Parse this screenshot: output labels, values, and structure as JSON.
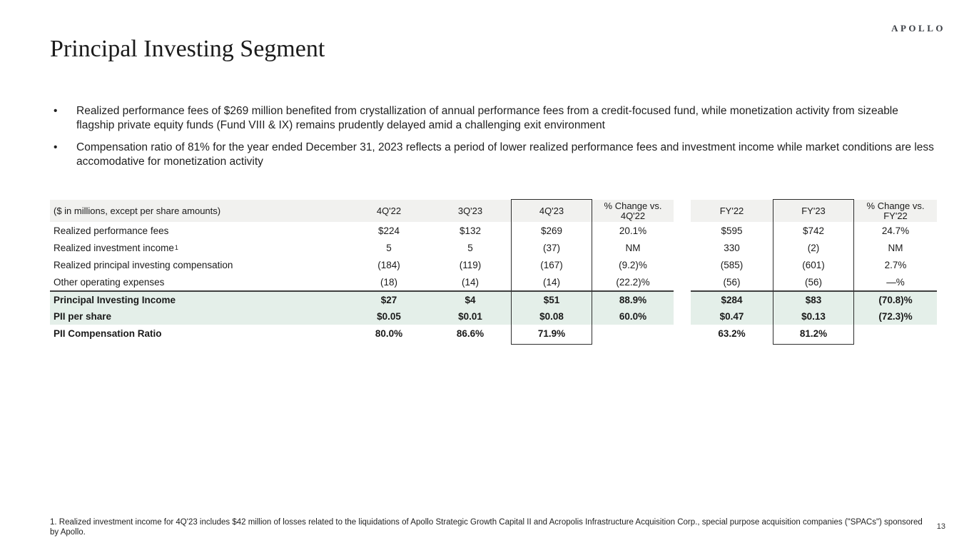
{
  "brand": {
    "logo": "APOLLO"
  },
  "page": {
    "title": "Principal Investing Segment",
    "page_number": "13"
  },
  "glyphs": {
    "bullet": "•"
  },
  "bullets": [
    "Realized performance fees of $269 million benefited from crystallization of annual performance fees from a credit-focused fund, while monetization activity from sizeable flagship private equity funds (Fund VIII & IX) remains prudently delayed amid a challenging exit environment",
    "Compensation ratio of 81% for the year ended December 31, 2023 reflects a period of lower realized performance fees and investment income while market conditions are less accomodative for monetization activity"
  ],
  "table": {
    "header": {
      "label": "($ in millions, except per share amounts)",
      "columns": [
        "4Q'22",
        "3Q'23",
        "4Q'23",
        "% Change vs.\n4Q'22",
        "FY'22",
        "FY'23",
        "% Change vs.\nFY'22"
      ]
    },
    "rows": [
      {
        "label": "Realized performance fees",
        "values": [
          "$224",
          "$132",
          "$269",
          "20.1%",
          "$595",
          "$742",
          "24.7%"
        ]
      },
      {
        "label": "Realized investment income",
        "sup": "1",
        "values": [
          "5",
          "5",
          "(37)",
          "NM",
          "330",
          "(2)",
          "NM"
        ]
      },
      {
        "label": "Realized principal investing compensation",
        "values": [
          "(184)",
          "(119)",
          "(167)",
          "(9.2)%",
          "(585)",
          "(601)",
          "2.7%"
        ]
      },
      {
        "label": "Other operating expenses",
        "values": [
          "(18)",
          "(14)",
          "(14)",
          "(22.2)%",
          "(56)",
          "(56)",
          "—%"
        ]
      },
      {
        "label": "Principal Investing Income",
        "values": [
          "$27",
          "$4",
          "$51",
          "88.9%",
          "$284",
          "$83",
          "(70.8)%"
        ],
        "bold": true,
        "shaded": true,
        "top_rule": true
      },
      {
        "label": "PII per share",
        "values": [
          "$0.05",
          "$0.01",
          "$0.08",
          "60.0%",
          "$0.47",
          "$0.13",
          "(72.3)%"
        ],
        "bold": true,
        "shaded": true
      },
      {
        "label": "PII Compensation Ratio",
        "values": [
          "80.0%",
          "86.6%",
          "71.9%",
          "",
          "63.2%",
          "81.2%",
          ""
        ],
        "bold": true
      }
    ]
  },
  "colors": {
    "header_bg": "#f1f1ef",
    "highlight_bg": "#e4efe9",
    "rule": "#3f3f3f",
    "box_border": "#2e2e2e"
  },
  "footnote": "1. Realized investment income for 4Q'23 includes $42 million of losses related to the liquidations of Apollo Strategic Growth Capital II and Acropolis Infrastructure Acquisition Corp., special purpose acquisition companies (\"SPACs\") sponsored by Apollo."
}
